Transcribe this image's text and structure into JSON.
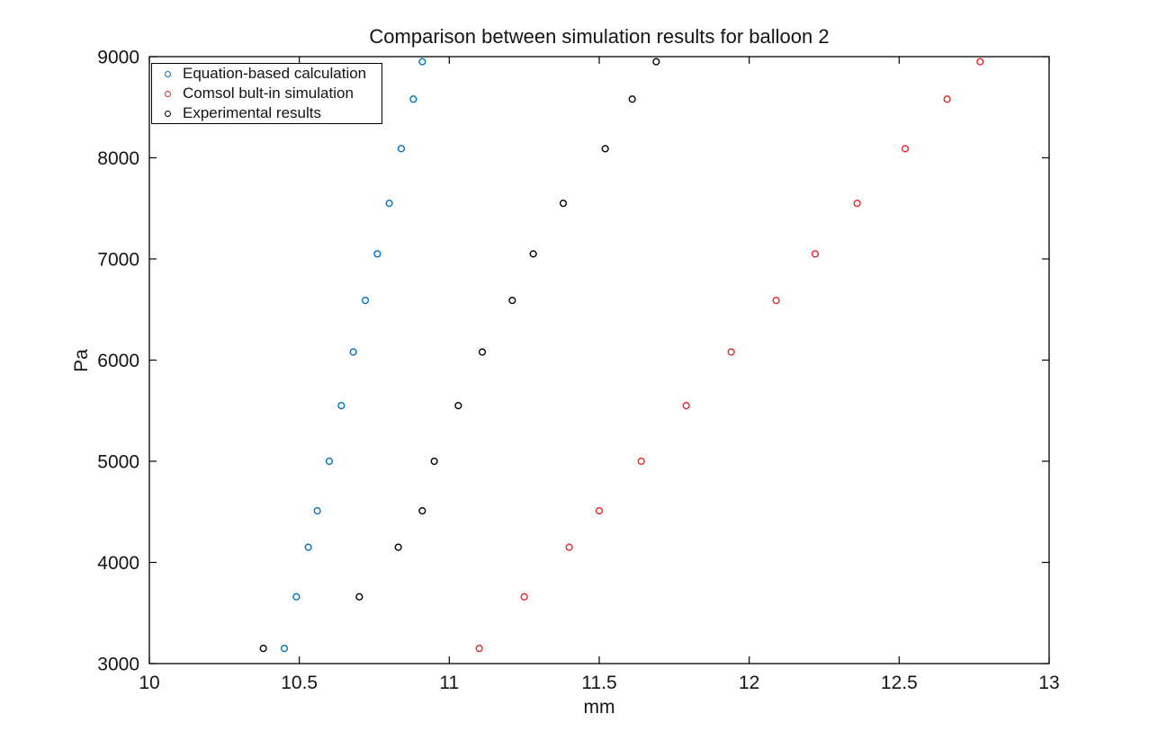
{
  "figure": {
    "title": "Comparison between simulation results for balloon 2",
    "xlabel": "mm",
    "ylabel": "Pa"
  },
  "chart_data": {
    "type": "scatter",
    "title": "Comparison between simulation results for balloon 2",
    "xlabel": "mm",
    "ylabel": "Pa",
    "xlim": [
      10,
      13
    ],
    "ylim": [
      3000,
      9000
    ],
    "xticks": [
      10,
      10.5,
      11,
      11.5,
      12,
      12.5,
      13
    ],
    "xtick_labels": [
      "10",
      "10.5",
      "11",
      "11.5",
      "12",
      "12.5",
      "13"
    ],
    "yticks": [
      3000,
      4000,
      5000,
      6000,
      7000,
      8000,
      9000
    ],
    "ytick_labels": [
      "3000",
      "4000",
      "5000",
      "6000",
      "7000",
      "8000",
      "9000"
    ],
    "grid": false,
    "legend_position": "top-left",
    "marker": "circle",
    "pressures_pa": [
      3150,
      3660,
      4150,
      4510,
      5000,
      5550,
      6080,
      6590,
      7050,
      7550,
      8090,
      8580,
      8950
    ],
    "series": [
      {
        "name": "Equation-based calculation",
        "color": "#0072BD",
        "marker": "circle",
        "x": [
          10.45,
          10.49,
          10.53,
          10.56,
          10.6,
          10.64,
          10.68,
          10.72,
          10.76,
          10.8,
          10.84,
          10.88,
          10.91
        ],
        "y": [
          3150,
          3660,
          4150,
          4510,
          5000,
          5550,
          6080,
          6590,
          7050,
          7550,
          8090,
          8580,
          8950
        ]
      },
      {
        "name": "Comsol bult-in simulation",
        "color": "#ED2224",
        "marker": "circle",
        "x": [
          11.1,
          11.25,
          11.4,
          11.5,
          11.64,
          11.79,
          11.94,
          12.09,
          12.22,
          12.36,
          12.52,
          12.66,
          12.77
        ],
        "y": [
          3150,
          3660,
          4150,
          4510,
          5000,
          5550,
          6080,
          6590,
          7050,
          7550,
          8090,
          8580,
          8950
        ]
      },
      {
        "name": "Experimental results",
        "color": "#000000",
        "marker": "circle",
        "x": [
          10.38,
          10.7,
          10.83,
          10.91,
          10.95,
          11.03,
          11.11,
          11.21,
          11.28,
          11.38,
          11.52,
          11.61,
          11.69
        ],
        "y": [
          3150,
          3660,
          4150,
          4510,
          5000,
          5550,
          6080,
          6590,
          7050,
          7550,
          8090,
          8580,
          8950
        ]
      }
    ]
  }
}
